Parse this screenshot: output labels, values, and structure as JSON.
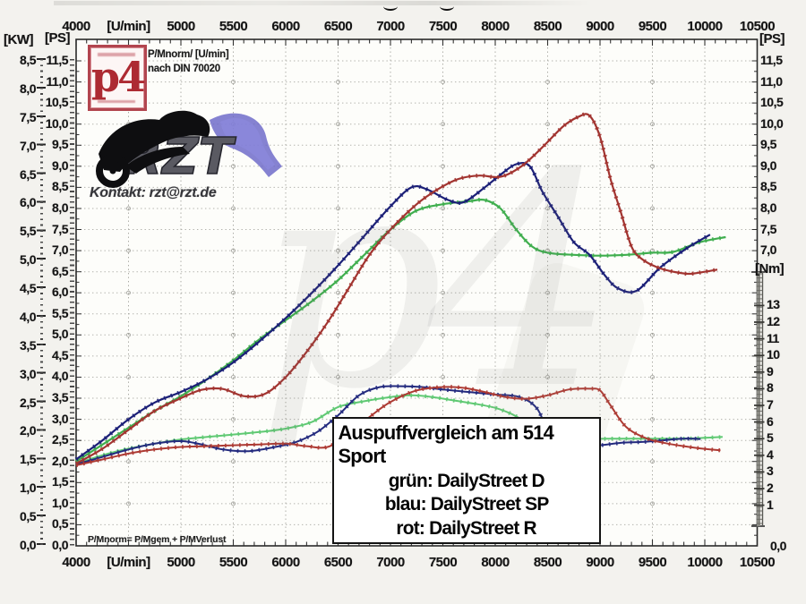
{
  "branding": {
    "p4_logo": "p4",
    "norm_line1": "P/Mnorm/ [U/min]",
    "norm_line2": "nach DIN 70020",
    "rzt_logo": "RZT",
    "contact": "Kontakt: rzt@rzt.de",
    "footer_formula": "P/Mnorm= P/Mgem + P/MVerlust",
    "watermark": "p4"
  },
  "legend": {
    "title": "Auspuffvergleich am 514 Sport",
    "entries": [
      {
        "label": "grün: DailyStreet D",
        "color": "#3fae4e"
      },
      {
        "label": "blau: DailyStreet SP",
        "color": "#1b1f77"
      },
      {
        "label": "rot: DailyStreet R",
        "color": "#a23430"
      }
    ]
  },
  "axes": {
    "x_top_labels": [
      "4000",
      "[U/min]",
      "5000",
      "5500",
      "6000",
      "6500",
      "7000",
      "7500",
      "8000",
      "8500",
      "9000",
      "9500",
      "10000",
      "10500"
    ],
    "x_bottom_labels": [
      "4000",
      "[U/min]",
      "5000",
      "5500",
      "6000",
      "6500",
      "7000",
      "7500",
      "8000",
      "8500",
      "9000",
      "9500",
      "10000",
      "10500"
    ],
    "left_kw_header": "[KW]",
    "left_ps_header": "[PS]",
    "right_ps_header": "[PS]",
    "right_nm_header": "[Nm]",
    "kw_labels": [
      "8,5",
      "8,0",
      "7,5",
      "7,0",
      "6,5",
      "6,0",
      "5,5",
      "5,0",
      "4,5",
      "4,0",
      "3,5",
      "3,0",
      "2,5",
      "2,0",
      "1,5",
      "1,0",
      "0,5",
      "0,0"
    ],
    "ps_labels": [
      "11,5",
      "11,0",
      "10,5",
      "10,0",
      "9,5",
      "9,0",
      "8,5",
      "8,0",
      "7,5",
      "7,0",
      "6,5",
      "6,0",
      "5,5",
      "5,0",
      "4,5",
      "4,0",
      "3,5",
      "3,0",
      "2,5",
      "2,0",
      "1,5",
      "1,0",
      "0,5",
      "0,0"
    ],
    "right_ps_labels": [
      "11,5",
      "11,0",
      "10,5",
      "10,0",
      "9,5",
      "9,0",
      "8,5",
      "8,0",
      "7,5",
      "7,0"
    ],
    "right_ps_zero": "0,0",
    "nm_labels": [
      "13",
      "12",
      "11",
      "10",
      "9",
      "8",
      "7",
      "6",
      "5",
      "4",
      "3",
      "2",
      "1"
    ]
  },
  "chart_data": {
    "type": "line",
    "title": "Auspuffvergleich am 514 Sport",
    "x_unit": "U/min",
    "x_range": [
      4000,
      10500
    ],
    "x_grid_step": 500,
    "power_axis": {
      "unit": "PS",
      "range": [
        0,
        11.5
      ],
      "grid_step": 0.5
    },
    "power_axis_secondary": {
      "unit": "KW",
      "range": [
        0,
        8.5
      ]
    },
    "torque_axis": {
      "unit": "Nm",
      "range": [
        1,
        13
      ]
    },
    "grid": true,
    "legend_position": "center-bottom box",
    "series": [
      {
        "name": "DailyStreet D Leistung (grün)",
        "axis": "ps",
        "color": "#3fae4e",
        "points": [
          [
            4000,
            2.0
          ],
          [
            4250,
            2.4
          ],
          [
            4500,
            2.8
          ],
          [
            4750,
            3.2
          ],
          [
            5000,
            3.55
          ],
          [
            5250,
            3.95
          ],
          [
            5500,
            4.4
          ],
          [
            5750,
            4.9
          ],
          [
            6000,
            5.35
          ],
          [
            6250,
            5.8
          ],
          [
            6500,
            6.3
          ],
          [
            6750,
            6.9
          ],
          [
            7000,
            7.5
          ],
          [
            7250,
            7.95
          ],
          [
            7500,
            8.1
          ],
          [
            7750,
            8.17
          ],
          [
            7900,
            8.2
          ],
          [
            8050,
            8.0
          ],
          [
            8200,
            7.5
          ],
          [
            8350,
            7.1
          ],
          [
            8500,
            6.95
          ],
          [
            8750,
            6.9
          ],
          [
            9000,
            6.88
          ],
          [
            9250,
            6.9
          ],
          [
            9500,
            6.95
          ],
          [
            9700,
            6.97
          ],
          [
            9950,
            7.2
          ],
          [
            10200,
            7.32
          ]
        ]
      },
      {
        "name": "DailyStreet SP Leistung (blau)",
        "axis": "ps",
        "color": "#1b1f77",
        "points": [
          [
            4000,
            2.05
          ],
          [
            4250,
            2.5
          ],
          [
            4500,
            3.0
          ],
          [
            4750,
            3.4
          ],
          [
            5000,
            3.65
          ],
          [
            5250,
            3.95
          ],
          [
            5500,
            4.35
          ],
          [
            5750,
            4.85
          ],
          [
            6000,
            5.4
          ],
          [
            6250,
            6.0
          ],
          [
            6500,
            6.65
          ],
          [
            6750,
            7.35
          ],
          [
            7000,
            8.05
          ],
          [
            7200,
            8.5
          ],
          [
            7350,
            8.45
          ],
          [
            7550,
            8.2
          ],
          [
            7700,
            8.15
          ],
          [
            7900,
            8.5
          ],
          [
            8050,
            8.8
          ],
          [
            8200,
            9.05
          ],
          [
            8330,
            9.0
          ],
          [
            8450,
            8.4
          ],
          [
            8600,
            7.8
          ],
          [
            8750,
            7.2
          ],
          [
            8900,
            6.9
          ],
          [
            9050,
            6.4
          ],
          [
            9175,
            6.1
          ],
          [
            9350,
            6.05
          ],
          [
            9575,
            6.6
          ],
          [
            9825,
            7.05
          ],
          [
            10050,
            7.38
          ]
        ]
      },
      {
        "name": "DailyStreet R Leistung (rot)",
        "axis": "ps",
        "color": "#a23430",
        "points": [
          [
            4000,
            1.95
          ],
          [
            4250,
            2.3
          ],
          [
            4500,
            2.75
          ],
          [
            4750,
            3.2
          ],
          [
            5000,
            3.5
          ],
          [
            5200,
            3.7
          ],
          [
            5400,
            3.72
          ],
          [
            5600,
            3.55
          ],
          [
            5800,
            3.6
          ],
          [
            6000,
            4.0
          ],
          [
            6200,
            4.6
          ],
          [
            6400,
            5.3
          ],
          [
            6600,
            6.1
          ],
          [
            6800,
            6.9
          ],
          [
            7000,
            7.5
          ],
          [
            7250,
            8.1
          ],
          [
            7450,
            8.45
          ],
          [
            7650,
            8.7
          ],
          [
            7850,
            8.78
          ],
          [
            8050,
            8.75
          ],
          [
            8250,
            9.0
          ],
          [
            8450,
            9.45
          ],
          [
            8650,
            9.95
          ],
          [
            8800,
            10.18
          ],
          [
            8900,
            10.2
          ],
          [
            9000,
            9.7
          ],
          [
            9100,
            8.7
          ],
          [
            9200,
            7.9
          ],
          [
            9300,
            7.1
          ],
          [
            9400,
            6.8
          ],
          [
            9550,
            6.6
          ],
          [
            9700,
            6.5
          ],
          [
            9850,
            6.45
          ],
          [
            10000,
            6.5
          ],
          [
            10120,
            6.55
          ]
        ]
      },
      {
        "name": "DailyStreet D Drehmoment (grün)",
        "axis": "nm",
        "color": "#5fc973",
        "points": [
          [
            4000,
            3.5
          ],
          [
            4250,
            4.0
          ],
          [
            4500,
            4.4
          ],
          [
            4750,
            4.7
          ],
          [
            5000,
            4.95
          ],
          [
            5250,
            5.1
          ],
          [
            5500,
            5.25
          ],
          [
            5750,
            5.4
          ],
          [
            6000,
            5.6
          ],
          [
            6250,
            6.0
          ],
          [
            6500,
            6.9
          ],
          [
            6750,
            7.25
          ],
          [
            7000,
            7.5
          ],
          [
            7200,
            7.6
          ],
          [
            7400,
            7.5
          ],
          [
            7600,
            7.3
          ],
          [
            7800,
            7.1
          ],
          [
            8000,
            6.85
          ],
          [
            8150,
            6.5
          ],
          [
            8300,
            6.0
          ],
          [
            8500,
            5.5
          ],
          [
            8700,
            5.1
          ],
          [
            8900,
            5.0
          ],
          [
            9200,
            5.0
          ],
          [
            9500,
            5.0
          ],
          [
            9800,
            5.0
          ],
          [
            10000,
            5.05
          ],
          [
            10170,
            5.1
          ]
        ]
      },
      {
        "name": "DailyStreet SP Drehmoment (blau)",
        "axis": "nm",
        "color": "#232a7e",
        "points": [
          [
            4000,
            3.45
          ],
          [
            4250,
            3.9
          ],
          [
            4500,
            4.35
          ],
          [
            4750,
            4.7
          ],
          [
            5000,
            4.85
          ],
          [
            5200,
            4.65
          ],
          [
            5400,
            4.35
          ],
          [
            5650,
            4.25
          ],
          [
            5900,
            4.5
          ],
          [
            6100,
            4.8
          ],
          [
            6300,
            5.4
          ],
          [
            6500,
            6.4
          ],
          [
            6700,
            7.6
          ],
          [
            6900,
            8.1
          ],
          [
            7100,
            8.15
          ],
          [
            7300,
            8.1
          ],
          [
            7500,
            7.95
          ],
          [
            7750,
            7.8
          ],
          [
            8000,
            7.65
          ],
          [
            8230,
            7.5
          ],
          [
            8400,
            6.8
          ],
          [
            8520,
            5.2
          ],
          [
            8650,
            4.65
          ],
          [
            8800,
            4.55
          ],
          [
            9000,
            4.6
          ],
          [
            9200,
            4.75
          ],
          [
            9400,
            4.8
          ],
          [
            9600,
            4.9
          ],
          [
            9800,
            5.0
          ],
          [
            9960,
            4.98
          ]
        ]
      },
      {
        "name": "DailyStreet R Drehmoment (rot)",
        "axis": "nm",
        "color": "#ad3a33",
        "points": [
          [
            4000,
            3.4
          ],
          [
            4250,
            3.75
          ],
          [
            4500,
            4.1
          ],
          [
            4750,
            4.35
          ],
          [
            5000,
            4.5
          ],
          [
            5250,
            4.55
          ],
          [
            5500,
            4.6
          ],
          [
            5750,
            4.65
          ],
          [
            6000,
            4.7
          ],
          [
            6200,
            4.55
          ],
          [
            6400,
            4.5
          ],
          [
            6600,
            5.3
          ],
          [
            6800,
            6.3
          ],
          [
            7000,
            7.2
          ],
          [
            7250,
            7.9
          ],
          [
            7500,
            8.1
          ],
          [
            7700,
            8.05
          ],
          [
            7900,
            7.8
          ],
          [
            8100,
            7.5
          ],
          [
            8300,
            7.4
          ],
          [
            8500,
            7.6
          ],
          [
            8700,
            7.95
          ],
          [
            8900,
            8.0
          ],
          [
            9000,
            7.9
          ],
          [
            9100,
            7.0
          ],
          [
            9250,
            5.7
          ],
          [
            9450,
            5.0
          ],
          [
            9650,
            4.7
          ],
          [
            9850,
            4.5
          ],
          [
            10050,
            4.35
          ],
          [
            10150,
            4.3
          ]
        ]
      }
    ]
  }
}
